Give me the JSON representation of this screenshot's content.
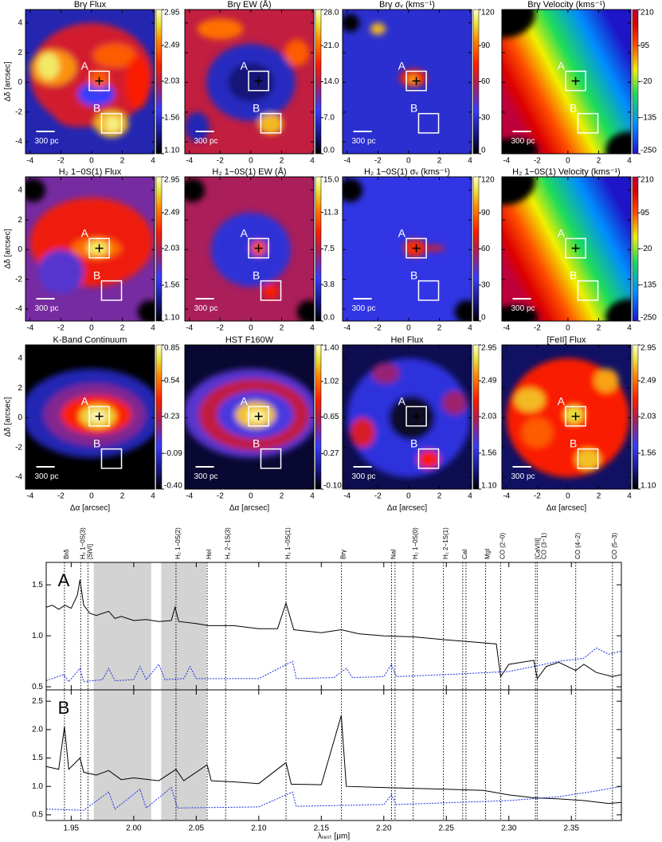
{
  "chart_data": [
    {
      "type": "map_grid",
      "xlabel": "Δα [arcsec]",
      "ylabel": "Δδ [arcsec]",
      "xlim": [
        -4.3,
        4.1
      ],
      "ylim": [
        -4.8,
        4.9
      ],
      "xticks": [
        -4,
        -2,
        0,
        2,
        4
      ],
      "yticks": [
        -4,
        -2,
        0,
        2,
        4
      ],
      "box_labels": [
        "A",
        "B"
      ],
      "scale_bar": "300 pc",
      "panels": [
        {
          "title": "Brγ Flux",
          "colormap": "heat",
          "cbar_lim": [
            1.1,
            2.95
          ],
          "cbar_ticks": [
            2.95,
            2.49,
            2.03,
            1.56,
            {
              "value": 1.1,
              "label": "1.10"
            }
          ]
        },
        {
          "title": "Brγ EW (Å)",
          "colormap": "heat",
          "cbar_lim": [
            0,
            28
          ],
          "cbar_ticks": [
            {
              "value": 28,
              "label": "28.0"
            },
            {
              "value": 21,
              "label": "21.0"
            },
            {
              "value": 14,
              "label": "14.0"
            },
            {
              "value": 7,
              "label": "7.0"
            },
            {
              "value": 0,
              "label": "0.0"
            }
          ]
        },
        {
          "title": "Brγ σᵥ (kms⁻¹)",
          "colormap": "heat",
          "cbar_lim": [
            0,
            120
          ],
          "cbar_ticks": [
            120,
            90,
            60,
            30,
            0
          ]
        },
        {
          "title": "Brγ Velocity (kms⁻¹)",
          "colormap": "rainbow",
          "cbar_lim": [
            -250,
            210
          ],
          "cbar_ticks": [
            210,
            95,
            -20,
            -135,
            -250
          ]
        },
        {
          "title": "H₂ 1−0S(1) Flux",
          "colormap": "heat",
          "cbar_lim": [
            1.1,
            2.95
          ],
          "cbar_ticks": [
            2.95,
            2.49,
            2.03,
            1.56,
            {
              "value": 1.1,
              "label": "1.10"
            }
          ]
        },
        {
          "title": "H₂ 1−0S(1) EW (Å)",
          "colormap": "heat",
          "cbar_lim": [
            0,
            15
          ],
          "cbar_ticks": [
            {
              "value": 15,
              "label": "15.0"
            },
            11.3,
            7.5,
            3.8,
            {
              "value": 0,
              "label": "0.0"
            }
          ]
        },
        {
          "title": "H₂ 1−0S(1) σᵥ (kms⁻¹)",
          "colormap": "heat",
          "cbar_lim": [
            0,
            120
          ],
          "cbar_ticks": [
            120,
            90,
            60,
            30,
            0
          ]
        },
        {
          "title": "H₂ 1−0S(1) Velocity (kms⁻¹)",
          "colormap": "rainbow",
          "cbar_lim": [
            -250,
            210
          ],
          "cbar_ticks": [
            210,
            95,
            -20,
            -135,
            -250
          ]
        },
        {
          "title": "K-Band Continuum",
          "colormap": "heat",
          "cbar_lim": [
            -0.4,
            0.85
          ],
          "cbar_ticks": [
            0.85,
            0.54,
            0.23,
            -0.09,
            {
              "value": -0.4,
              "label": "-0.40"
            }
          ]
        },
        {
          "title": "HST F160W",
          "colormap": "heat",
          "cbar_lim": [
            -0.1,
            1.4
          ],
          "cbar_ticks": [
            {
              "value": 1.4,
              "label": "1.40"
            },
            1.02,
            0.65,
            0.27,
            {
              "value": -0.1,
              "label": "-0.10"
            }
          ]
        },
        {
          "title": "HeI Flux",
          "colormap": "heat",
          "cbar_lim": [
            1.1,
            2.95
          ],
          "cbar_ticks": [
            2.95,
            2.49,
            2.03,
            1.56,
            {
              "value": 1.1,
              "label": "1.10"
            }
          ]
        },
        {
          "title": "[FeII] Flux",
          "colormap": "heat",
          "cbar_lim": [
            1.1,
            2.95
          ],
          "cbar_ticks": [
            2.95,
            2.49,
            2.03,
            1.56,
            {
              "value": 1.1,
              "label": "1.10"
            }
          ]
        }
      ]
    },
    {
      "type": "spectrum",
      "xlabel": "λᵣₑₛₜ [μm]",
      "xlim": [
        1.93,
        2.39
      ],
      "xticks": [
        1.95,
        {
          "value": 2,
          "label": "2.00"
        },
        2.05,
        {
          "value": 2.1,
          "label": "2.10"
        },
        2.15,
        {
          "value": 2.2,
          "label": "2.20"
        },
        2.25,
        {
          "value": 2.3,
          "label": "2.30"
        },
        2.35
      ],
      "shaded": [
        [
          1.968,
          2.014
        ],
        [
          2.022,
          2.058
        ]
      ],
      "lines": [
        {
          "label": "Brδ",
          "wavelengths": [
            1.9446
          ]
        },
        {
          "label": "H₂ 1−0S(3)",
          "wavelengths": [
            1.9576
          ]
        },
        {
          "label": "[SiVI]",
          "wavelengths": [
            1.9634
          ]
        },
        {
          "label": "H₂ 1−0S(2)",
          "wavelengths": [
            2.0338
          ]
        },
        {
          "label": "HeI",
          "wavelengths": [
            2.0587
          ]
        },
        {
          "label": "H₂ 2−1S(3)",
          "wavelengths": [
            2.0735
          ]
        },
        {
          "label": "H₂ 1−0S(1)",
          "wavelengths": [
            2.1218
          ]
        },
        {
          "label": "Brγ",
          "wavelengths": [
            2.1661
          ]
        },
        {
          "label": "NaI",
          "wavelengths": [
            2.2062,
            2.209
          ]
        },
        {
          "label": "H₂ 1−0S(0)",
          "wavelengths": [
            2.2235
          ]
        },
        {
          "label": "H₂ 2−1S(1)",
          "wavelengths": [
            2.2477
          ]
        },
        {
          "label": "CaI",
          "wavelengths": [
            2.2631,
            2.2657
          ]
        },
        {
          "label": "MgI",
          "wavelengths": [
            2.2814
          ]
        },
        {
          "label": "CO (2−0)",
          "wavelengths": [
            2.2935
          ]
        },
        {
          "label": "[CaVIII]",
          "wavelengths": [
            2.3213
          ]
        },
        {
          "label": "CO (3−1)",
          "wavelengths": [
            2.3227
          ]
        },
        {
          "label": "CO (4−2)",
          "wavelengths": [
            2.3535
          ]
        },
        {
          "label": "CO (5−3)",
          "wavelengths": [
            2.3829
          ]
        }
      ],
      "panels": [
        {
          "label": "A",
          "ylim": [
            0.47,
            1.72
          ],
          "yticks": [
            0.5,
            {
              "value": 1,
              "label": "1.0"
            },
            1.5
          ],
          "series": [
            {
              "color": "#000000",
              "dashed": false,
              "x": [
                1.93,
                1.935,
                1.94,
                1.945,
                1.95,
                1.955,
                1.957,
                1.96,
                1.965,
                1.97,
                1.98,
                1.985,
                1.99,
                2.0,
                2.01,
                2.02,
                2.03,
                2.033,
                2.036,
                2.05,
                2.06,
                2.08,
                2.1,
                2.115,
                2.1218,
                2.128,
                2.15,
                2.166,
                2.18,
                2.2,
                2.223,
                2.25,
                2.27,
                2.29,
                2.2935,
                2.3,
                2.32,
                2.3227,
                2.33,
                2.34,
                2.3535,
                2.36,
                2.37,
                2.3829,
                2.39
              ],
              "values": [
                1.28,
                1.3,
                1.26,
                1.3,
                1.27,
                1.4,
                1.55,
                1.3,
                1.22,
                1.2,
                1.24,
                1.17,
                1.19,
                1.15,
                1.16,
                1.14,
                1.15,
                1.28,
                1.14,
                1.12,
                1.1,
                1.1,
                1.07,
                1.07,
                1.32,
                1.06,
                1.03,
                1.06,
                1.02,
                1.0,
                0.99,
                0.96,
                0.94,
                0.92,
                0.6,
                0.72,
                0.76,
                0.58,
                0.7,
                0.74,
                0.66,
                0.72,
                0.64,
                0.6,
                0.62
              ]
            },
            {
              "color": "#1a2fe0",
              "dashed": true,
              "x": [
                1.93,
                1.944,
                1.948,
                1.957,
                1.96,
                1.975,
                1.98,
                1.985,
                2.0,
                2.005,
                2.01,
                2.02,
                2.025,
                2.04,
                2.045,
                2.05,
                2.1,
                2.127,
                2.13,
                2.16,
                2.17,
                2.175,
                2.2,
                2.206,
                2.21,
                2.25,
                2.3,
                2.32,
                2.34,
                2.36,
                2.37,
                2.38,
                2.39
              ],
              "values": [
                0.56,
                0.62,
                0.55,
                0.68,
                0.55,
                0.57,
                0.68,
                0.56,
                0.57,
                0.7,
                0.57,
                0.72,
                0.57,
                0.58,
                0.7,
                0.58,
                0.58,
                0.75,
                0.58,
                0.59,
                0.68,
                0.59,
                0.6,
                0.72,
                0.6,
                0.62,
                0.65,
                0.7,
                0.75,
                0.78,
                0.88,
                0.82,
                0.85
              ]
            }
          ]
        },
        {
          "label": "B",
          "ylim": [
            0.4,
            2.7
          ],
          "yticks": [
            0.5,
            {
              "value": 1,
              "label": "1.0"
            },
            1.5,
            {
              "value": 2,
              "label": "2.0"
            },
            2.5
          ],
          "series": [
            {
              "color": "#000000",
              "dashed": false,
              "x": [
                1.93,
                1.94,
                1.9446,
                1.948,
                1.957,
                1.96,
                1.97,
                1.98,
                1.99,
                2.0,
                2.02,
                2.0338,
                2.04,
                2.0587,
                2.062,
                2.08,
                2.1,
                2.1218,
                2.126,
                2.15,
                2.166,
                2.17,
                2.2,
                2.25,
                2.28,
                2.3,
                2.32,
                2.34,
                2.36,
                2.38,
                2.39
              ],
              "values": [
                1.35,
                1.3,
                2.05,
                1.3,
                1.5,
                1.25,
                1.2,
                1.28,
                1.12,
                1.15,
                1.1,
                1.3,
                1.1,
                1.38,
                1.1,
                1.08,
                1.05,
                1.42,
                1.04,
                1.03,
                2.25,
                1.0,
                0.98,
                0.95,
                0.93,
                0.85,
                0.8,
                0.78,
                0.75,
                0.7,
                0.72
              ]
            },
            {
              "color": "#1a2fe0",
              "dashed": true,
              "x": [
                1.93,
                1.96,
                1.98,
                1.985,
                2.005,
                2.01,
                2.03,
                2.035,
                2.1,
                2.127,
                2.13,
                2.2,
                2.206,
                2.21,
                2.3,
                2.34,
                2.37,
                2.39
              ],
              "values": [
                0.6,
                0.58,
                0.9,
                0.6,
                0.95,
                0.62,
                0.98,
                0.62,
                0.64,
                0.9,
                0.65,
                0.68,
                0.85,
                0.68,
                0.75,
                0.82,
                0.92,
                1.0
              ]
            }
          ]
        }
      ]
    }
  ]
}
